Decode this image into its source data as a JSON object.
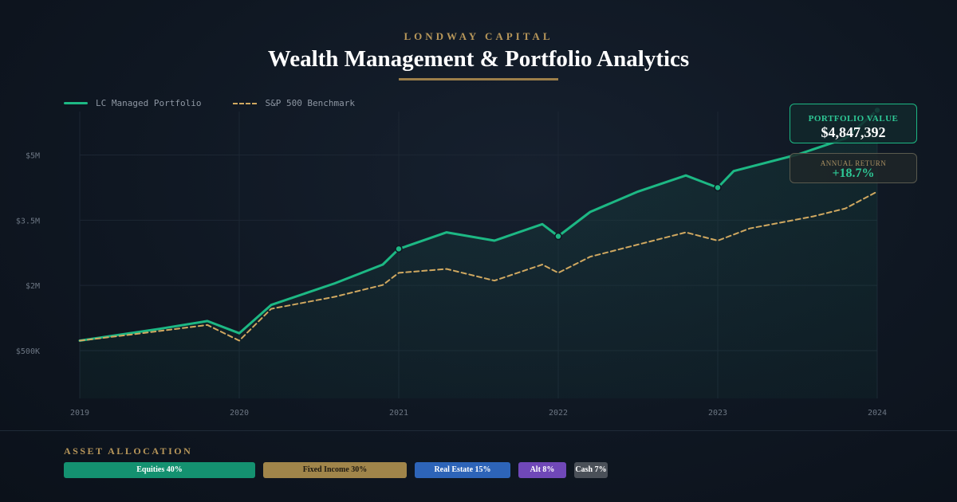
{
  "header": {
    "brand": "LONDWAY CAPITAL",
    "title": "Wealth Management & Portfolio Analytics"
  },
  "legend": {
    "portfolio": "LC Managed Portfolio",
    "benchmark": "S&P 500 Benchmark"
  },
  "badges": {
    "value_label": "PORTFOLIO VALUE",
    "value": "$4,847,392",
    "return_label": "ANNUAL RETURN",
    "return_value": "+18.7%"
  },
  "allocation": {
    "title": "ASSET ALLOCATION",
    "items": [
      {
        "label": "Equities 40%",
        "percent": 40,
        "color": "#149170"
      },
      {
        "label": "Fixed Income 30%",
        "percent": 30,
        "color": "#a0854a"
      },
      {
        "label": "Real Estate 15%",
        "percent": 15,
        "color": "#2d64b8"
      },
      {
        "label": "Alt 8%",
        "percent": 8,
        "color": "#7048b8"
      },
      {
        "label": "Cash 7%",
        "percent": 7,
        "color": "#4a5058"
      }
    ]
  },
  "chart_data": {
    "type": "line",
    "xlim": [
      2019,
      2024
    ],
    "ylim": [
      -0.6,
      6.0
    ],
    "x_ticks": [
      2019,
      2020,
      2021,
      2022,
      2023,
      2024
    ],
    "x_tick_labels": [
      "2019",
      "2020",
      "2021",
      "2022",
      "2023",
      "2024"
    ],
    "y_ticks": [
      0.5,
      2.0,
      3.5,
      5.0
    ],
    "y_tick_labels": [
      "$500K",
      "$2M",
      "$3.5M",
      "$5M"
    ],
    "grid": true,
    "legend_position": "top-left",
    "series": [
      {
        "name": "LC Managed Portfolio",
        "color": "#1db884",
        "style": "solid",
        "area_fill": true,
        "x": [
          2019,
          2019.5,
          2019.8,
          2020,
          2020.2,
          2020.6,
          2020.9,
          2021,
          2021.3,
          2021.6,
          2021.9,
          2022,
          2022.2,
          2022.5,
          2022.8,
          2023,
          2023.1,
          2023.5,
          2023.8,
          2024
        ],
        "y": [
          0.73,
          1.0,
          1.18,
          0.9,
          1.55,
          2.05,
          2.48,
          2.84,
          3.22,
          3.03,
          3.41,
          3.13,
          3.69,
          4.16,
          4.53,
          4.25,
          4.63,
          5.01,
          5.38,
          6.03
        ],
        "markers_at": [
          2021,
          2022,
          2023,
          2024
        ]
      },
      {
        "name": "S&P 500 Benchmark",
        "color": "#d0a860",
        "style": "dashed",
        "x": [
          2019,
          2019.3,
          2019.8,
          2020,
          2020.2,
          2020.6,
          2020.9,
          2021,
          2021.3,
          2021.6,
          2021.9,
          2022,
          2022.2,
          2022.5,
          2022.8,
          2023,
          2023.2,
          2023.6,
          2023.8,
          2024
        ],
        "y": [
          0.73,
          0.86,
          1.09,
          0.73,
          1.46,
          1.74,
          2.01,
          2.29,
          2.38,
          2.11,
          2.48,
          2.29,
          2.66,
          2.94,
          3.22,
          3.03,
          3.31,
          3.59,
          3.77,
          4.16
        ]
      }
    ]
  }
}
